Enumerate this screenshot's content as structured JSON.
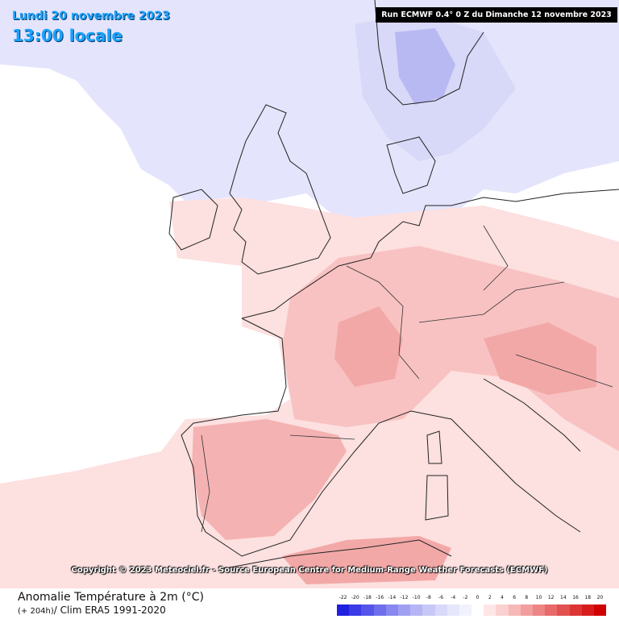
{
  "header": {
    "date": "Lundi 20 novembre 2023",
    "time": "13:00 locale",
    "run": "Run ECMWF 0.4° 0 Z du Dimanche 12 novembre 2023"
  },
  "map": {
    "copyright": "Copyright © 2023 Meteociel.fr - Source European Centre for Medium-Range Weather Forecasts (ECMWF)",
    "land_outline_color": "#222222",
    "sea_color": "#ffffff",
    "warm_anomaly_color": "#f4b8b8",
    "cold_anomaly_color": "#c8c8f4"
  },
  "footer": {
    "title": "Anomalie Température à 2m (°C)",
    "sub_lead": "(+ 204h)",
    "sub_rest": "/ Clim ERA5 1991-2020"
  },
  "legend": {
    "labels": [
      "-22",
      "-20",
      "-18",
      "-16",
      "-14",
      "-12",
      "-10",
      "-8",
      "-6",
      "-4",
      "-2",
      "0",
      "2",
      "4",
      "6",
      "8",
      "10",
      "12",
      "14",
      "16",
      "18",
      "20"
    ],
    "colors": [
      "#2020e0",
      "#3a3ae6",
      "#5555ea",
      "#6f6fee",
      "#8888f0",
      "#a0a0f3",
      "#b5b5f5",
      "#c8c8f7",
      "#d8d8fa",
      "#e6e6fc",
      "#f2f2fe",
      "#ffffff",
      "#ffe6e6",
      "#fbd0d0",
      "#f7b8b8",
      "#f29e9e",
      "#ee8585",
      "#e96a6a",
      "#e35050",
      "#dd3535",
      "#d81c1c",
      "#d00000"
    ]
  }
}
